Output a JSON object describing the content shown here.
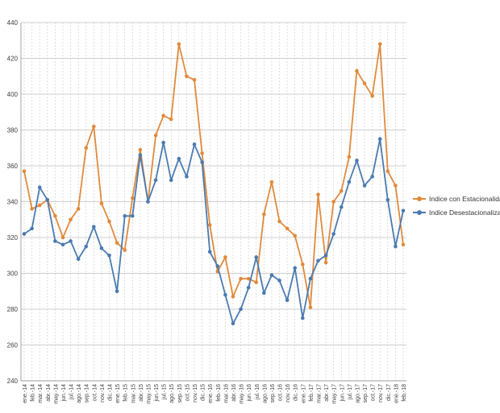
{
  "chart_data": {
    "type": "line",
    "title": "",
    "xlabel": "",
    "ylabel": "",
    "ylim": [
      240,
      440
    ],
    "yticks": [
      240,
      260,
      280,
      300,
      320,
      340,
      360,
      380,
      400,
      420,
      440
    ],
    "grid": true,
    "legend_position": "right",
    "categories": [
      "ene.-14",
      "feb.-14",
      "mar.-14",
      "abr.-14",
      "may.-14",
      "jun.-14",
      "jul.-14",
      "ago.-14",
      "sep.-14",
      "oct.-14",
      "nov.-14",
      "dic.-14",
      "ene.-15",
      "feb.-15",
      "mar.-15",
      "abr.-15",
      "may.-15",
      "jun.-15",
      "jul.-15",
      "ago.-15",
      "sep.-15",
      "oct.-15",
      "nov.-15",
      "dic.-15",
      "ene.-16",
      "feb.-16",
      "mar.-16",
      "abr.-16",
      "may.-16",
      "jun.-16",
      "jul.-16",
      "ago.-16",
      "sep.-16",
      "oct.-16",
      "nov.-16",
      "dic.-16",
      "ene.-17",
      "feb.-17",
      "mar.-17",
      "abr.-17",
      "may.-17",
      "jun.-17",
      "jul.-17",
      "ago.-17",
      "sep.-17",
      "oct.-17",
      "nov.-17",
      "dic.-17",
      "ene.-18",
      "feb.-18"
    ],
    "series": [
      {
        "name": "Indice con Estacionalidad",
        "color": "#e08a3c",
        "values": [
          357,
          336,
          338,
          341,
          332,
          320,
          330,
          336,
          370,
          382,
          339,
          329,
          317,
          313,
          342,
          369,
          340,
          377,
          388,
          386,
          428,
          410,
          408,
          367,
          327,
          301,
          309,
          287,
          297,
          297,
          295,
          333,
          351,
          329,
          325,
          321,
          305,
          281,
          344,
          306,
          340,
          346,
          365,
          413,
          406,
          399,
          428,
          357,
          349,
          316
        ]
      },
      {
        "name": "Indice Desestacionalizado",
        "color": "#4a7ab0",
        "values": [
          322,
          325,
          348,
          341,
          318,
          316,
          318,
          308,
          315,
          326,
          314,
          310,
          290,
          332,
          332,
          366,
          340,
          352,
          373,
          352,
          364,
          354,
          372,
          362,
          312,
          304,
          288,
          272,
          280,
          292,
          309,
          289,
          299,
          296,
          285,
          303,
          275,
          297,
          307,
          310,
          322,
          337,
          351,
          363,
          349,
          354,
          375,
          341,
          315,
          335
        ]
      }
    ]
  }
}
